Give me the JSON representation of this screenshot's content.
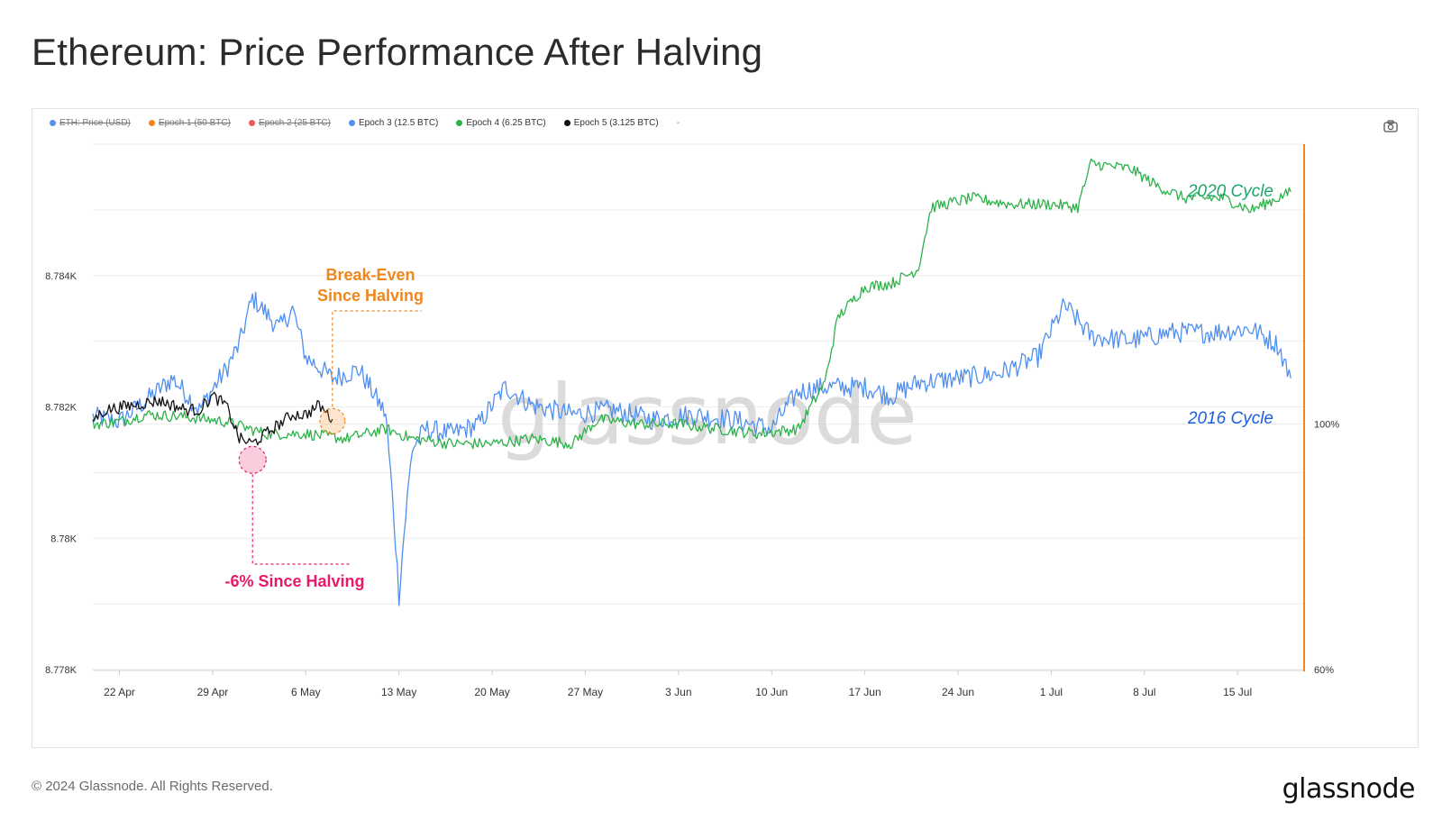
{
  "title": "Ethereum: Price Performance After Halving",
  "legend": [
    {
      "label": "ETH: Price (USD)",
      "color": "#5b8def",
      "disabled": true
    },
    {
      "label": "Epoch 1 (50 BTC)",
      "color": "#f0861c",
      "disabled": true
    },
    {
      "label": "Epoch 2 (25 BTC)",
      "color": "#ef5b5b",
      "disabled": true
    },
    {
      "label": "Epoch 3 (12.5 BTC)",
      "color": "#4f8ff0",
      "disabled": false
    },
    {
      "label": "Epoch 4 (6.25 BTC)",
      "color": "#2db24a",
      "disabled": false
    },
    {
      "label": "Epoch 5 (3.125 BTC)",
      "color": "#111111",
      "disabled": false
    }
  ],
  "legend_extra": "-",
  "watermark": "glassnode",
  "footer": {
    "copyright": "© 2024 Glassnode. All Rights Reserved.",
    "logo": "glassnode"
  },
  "chart_data": {
    "type": "line",
    "x_ticks": [
      "22 Apr",
      "29 Apr",
      "6 May",
      "13 May",
      "20 May",
      "27 May",
      "3 Jun",
      "10 Jun",
      "17 Jun",
      "24 Jun",
      "1 Jul",
      "8 Jul",
      "15 Jul"
    ],
    "x_range": [
      "2024-04-20",
      "2024-07-20"
    ],
    "y_left_ticks": [
      "8.778K",
      "8.78K",
      "8.782K",
      "8.784K"
    ],
    "y_left_range": [
      8778,
      8786
    ],
    "y_right_ticks": [
      "60%",
      "100%"
    ],
    "y_right_scale": "log",
    "y_right_range": [
      60,
      179
    ],
    "grid": true,
    "legend_position": "top-left",
    "series": [
      {
        "name": "Epoch 3 (12.5 BTC)",
        "color": "#4f8ff0",
        "x": [
          "2024-04-20",
          "2024-04-22",
          "2024-04-24",
          "2024-04-26",
          "2024-04-28",
          "2024-04-30",
          "2024-05-01",
          "2024-05-02",
          "2024-05-04",
          "2024-05-05",
          "2024-05-06",
          "2024-05-08",
          "2024-05-10",
          "2024-05-12",
          "2024-05-13",
          "2024-05-14",
          "2024-05-15",
          "2024-05-17",
          "2024-05-19",
          "2024-05-21",
          "2024-05-23",
          "2024-05-26",
          "2024-05-29",
          "2024-06-01",
          "2024-06-04",
          "2024-06-07",
          "2024-06-10",
          "2024-06-12",
          "2024-06-14",
          "2024-06-17",
          "2024-06-19",
          "2024-06-21",
          "2024-06-24",
          "2024-06-27",
          "2024-06-30",
          "2024-07-02",
          "2024-07-04",
          "2024-07-07",
          "2024-07-10",
          "2024-07-13",
          "2024-07-16",
          "2024-07-18",
          "2024-07-19"
        ],
        "y": [
          101.5,
          100.5,
          105,
          110,
          103,
          112,
          118,
          130,
          122,
          127,
          115,
          110,
          112,
          102,
          70,
          95,
          99,
          98,
          100,
          108,
          104,
          102,
          103,
          101,
          102,
          101,
          99,
          107,
          108,
          108,
          106,
          109,
          110,
          111,
          115,
          128,
          120,
          119,
          121,
          121,
          122,
          118,
          110
        ]
      },
      {
        "name": "Epoch 4 (6.25 BTC)",
        "color": "#2db24a",
        "x": [
          "2024-04-20",
          "2024-04-22",
          "2024-04-24",
          "2024-04-27",
          "2024-04-30",
          "2024-05-03",
          "2024-05-06",
          "2024-05-09",
          "2024-05-12",
          "2024-05-14",
          "2024-05-17",
          "2024-05-20",
          "2024-05-23",
          "2024-05-26",
          "2024-05-28",
          "2024-05-31",
          "2024-06-03",
          "2024-06-06",
          "2024-06-09",
          "2024-06-12",
          "2024-06-14",
          "2024-06-15",
          "2024-06-17",
          "2024-06-19",
          "2024-06-21",
          "2024-06-22",
          "2024-06-25",
          "2024-06-28",
          "2024-07-01",
          "2024-07-03",
          "2024-07-04",
          "2024-07-07",
          "2024-07-09",
          "2024-07-11",
          "2024-07-14",
          "2024-07-16",
          "2024-07-18",
          "2024-07-19"
        ],
        "y": [
          100,
          100.5,
          102,
          101.5,
          100.5,
          98,
          98,
          97,
          99,
          97,
          96,
          96,
          97,
          96,
          101,
          100,
          100,
          99,
          98,
          99,
          109,
          125,
          133,
          134,
          138,
          157,
          160,
          158,
          158,
          157,
          172,
          170,
          164,
          160,
          160,
          156,
          160,
          162
        ]
      },
      {
        "name": "Epoch 5 (3.125 BTC)",
        "color": "#111111",
        "x": [
          "2024-04-20",
          "2024-04-21",
          "2024-04-23",
          "2024-04-25",
          "2024-04-27",
          "2024-04-28",
          "2024-04-29",
          "2024-04-30",
          "2024-05-01",
          "2024-05-02",
          "2024-05-03",
          "2024-05-04",
          "2024-05-05",
          "2024-05-06",
          "2024-05-07",
          "2024-05-08"
        ],
        "y": [
          101,
          103,
          104,
          105,
          103,
          103,
          106,
          104,
          97,
          96,
          98,
          100,
          102,
          102,
          104,
          101
        ]
      }
    ],
    "annotations": [
      {
        "text": "2020 Cycle",
        "color": "#1ea86a"
      },
      {
        "text": "2016 Cycle",
        "color": "#1b5fe0"
      },
      {
        "text": "Break-Even\nSince Halving",
        "color": "#f0861c",
        "x": "2024-05-08",
        "y": 101
      },
      {
        "text": "-6% Since Halving",
        "color": "#e8196a",
        "x": "2024-05-02",
        "y": 96
      }
    ]
  }
}
